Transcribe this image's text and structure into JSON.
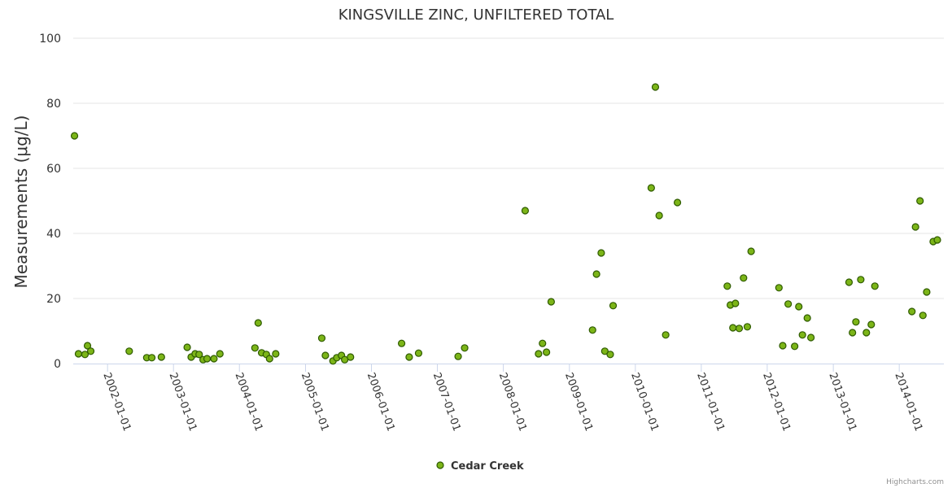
{
  "credits": "Highcharts.com",
  "chart_data": {
    "type": "scatter",
    "title": "KINGSVILLE ZINC, UNFILTERED TOTAL",
    "ylabel": "Measurements (μg/L)",
    "xlabel": "",
    "ylim": [
      0,
      100
    ],
    "yticks": [
      "0",
      "20",
      "40",
      "60",
      "80",
      "100"
    ],
    "xlim": [
      "2001-06-25",
      "2014-09-05"
    ],
    "xticks": [
      "2002-01-01",
      "2003-01-01",
      "2004-01-01",
      "2005-01-01",
      "2006-01-01",
      "2007-01-01",
      "2008-01-01",
      "2009-01-01",
      "2010-01-01",
      "2011-01-01",
      "2012-01-01",
      "2013-01-01",
      "2014-01-01"
    ],
    "grid": true,
    "legend_position": "bottom-center",
    "colors": {
      "marker_fill": "#7cb518",
      "marker_stroke": "#2e5a00",
      "gridline": "#e6e6e6",
      "axis": "#ccd6eb"
    },
    "series": [
      {
        "name": "Cedar Creek",
        "points": [
          [
            "2001-07-02",
            70
          ],
          [
            "2001-07-24",
            3
          ],
          [
            "2001-08-29",
            2.8
          ],
          [
            "2001-09-12",
            5.5
          ],
          [
            "2001-09-30",
            3.8
          ],
          [
            "2002-05-01",
            3.8
          ],
          [
            "2002-08-06",
            1.8
          ],
          [
            "2002-09-03",
            1.8
          ],
          [
            "2002-10-26",
            2
          ],
          [
            "2003-03-18",
            5
          ],
          [
            "2003-04-09",
            2
          ],
          [
            "2003-05-01",
            3
          ],
          [
            "2003-05-23",
            2.8
          ],
          [
            "2003-06-14",
            1.2
          ],
          [
            "2003-07-06",
            1.5
          ],
          [
            "2003-08-13",
            1.5
          ],
          [
            "2003-09-15",
            3
          ],
          [
            "2004-03-27",
            4.8
          ],
          [
            "2004-04-14",
            12.5
          ],
          [
            "2004-05-03",
            3.3
          ],
          [
            "2004-05-29",
            2.8
          ],
          [
            "2004-06-16",
            1.5
          ],
          [
            "2004-07-20",
            3
          ],
          [
            "2005-04-01",
            7.8
          ],
          [
            "2005-04-21",
            2.5
          ],
          [
            "2005-06-02",
            0.8
          ],
          [
            "2005-06-23",
            1.8
          ],
          [
            "2005-07-19",
            2.5
          ],
          [
            "2005-08-06",
            1.2
          ],
          [
            "2005-09-07",
            2
          ],
          [
            "2006-06-17",
            6.2
          ],
          [
            "2006-07-29",
            2
          ],
          [
            "2006-09-19",
            3.2
          ],
          [
            "2007-04-26",
            2.2
          ],
          [
            "2007-06-01",
            4.8
          ],
          [
            "2008-05-01",
            47
          ],
          [
            "2008-07-14",
            3
          ],
          [
            "2008-08-05",
            6.2
          ],
          [
            "2008-08-27",
            3.5
          ],
          [
            "2008-09-22",
            19
          ],
          [
            "2009-05-09",
            10.3
          ],
          [
            "2009-05-31",
            27.5
          ],
          [
            "2009-06-26",
            34
          ],
          [
            "2009-07-16",
            3.8
          ],
          [
            "2009-08-15",
            2.8
          ],
          [
            "2009-08-31",
            17.8
          ],
          [
            "2010-03-30",
            54
          ],
          [
            "2010-04-22",
            85
          ],
          [
            "2010-05-13",
            45.5
          ],
          [
            "2010-06-18",
            8.8
          ],
          [
            "2010-08-22",
            49.5
          ],
          [
            "2011-05-25",
            23.8
          ],
          [
            "2011-06-11",
            18
          ],
          [
            "2011-06-25",
            11
          ],
          [
            "2011-07-09",
            18.5
          ],
          [
            "2011-07-30",
            10.8
          ],
          [
            "2011-08-23",
            26.3
          ],
          [
            "2011-09-13",
            11.3
          ],
          [
            "2011-10-04",
            34.5
          ],
          [
            "2012-03-06",
            23.3
          ],
          [
            "2012-03-27",
            5.5
          ],
          [
            "2012-04-26",
            18.3
          ],
          [
            "2012-06-01",
            5.3
          ],
          [
            "2012-06-24",
            17.5
          ],
          [
            "2012-07-14",
            8.8
          ],
          [
            "2012-08-10",
            14
          ],
          [
            "2012-08-30",
            8
          ],
          [
            "2013-03-29",
            25
          ],
          [
            "2013-04-17",
            9.5
          ],
          [
            "2013-05-06",
            12.8
          ],
          [
            "2013-06-02",
            25.8
          ],
          [
            "2013-07-03",
            9.5
          ],
          [
            "2013-07-30",
            12
          ],
          [
            "2013-08-19",
            23.8
          ],
          [
            "2014-03-12",
            16
          ],
          [
            "2014-04-01",
            42
          ],
          [
            "2014-04-26",
            50
          ],
          [
            "2014-05-12",
            14.8
          ],
          [
            "2014-06-02",
            22
          ],
          [
            "2014-07-08",
            37.5
          ],
          [
            "2014-07-31",
            38
          ]
        ]
      }
    ]
  }
}
